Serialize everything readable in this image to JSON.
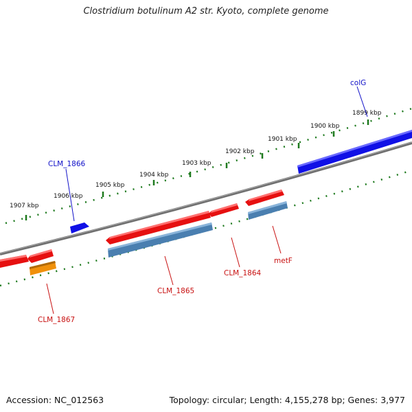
{
  "title": "Clostridium botulinum A2 str. Kyoto, complete genome",
  "footer": {
    "accession": "Accession: NC_012563",
    "summary": "Topology: circular; Length: 4,155,278 bp; Genes: 3,977"
  },
  "colors": {
    "backbone": "#7a7a7a",
    "tick": "#1e7a1e",
    "forward_gene": "#1010e6",
    "reverse_gene": "#e61010",
    "cds_blue": "#4a7fb0",
    "cds_orange": "#f0900a",
    "label_forward": "#1010c8",
    "label_reverse": "#c81010"
  },
  "scale_ticks": [
    {
      "label": "1899 kbp"
    },
    {
      "label": "1900 kbp"
    },
    {
      "label": "1901 kbp"
    },
    {
      "label": "1902 kbp"
    },
    {
      "label": "1903 kbp"
    },
    {
      "label": "1904 kbp"
    },
    {
      "label": "1905 kbp"
    },
    {
      "label": "1906 kbp"
    },
    {
      "label": "1907 kbp"
    }
  ],
  "genes": [
    {
      "label": "colG",
      "strand": "forward"
    },
    {
      "label": "CLM_1866",
      "strand": "forward"
    },
    {
      "label": "metF",
      "strand": "reverse"
    },
    {
      "label": "CLM_1864",
      "strand": "reverse"
    },
    {
      "label": "CLM_1865",
      "strand": "reverse"
    },
    {
      "label": "CLM_1867",
      "strand": "reverse"
    }
  ]
}
